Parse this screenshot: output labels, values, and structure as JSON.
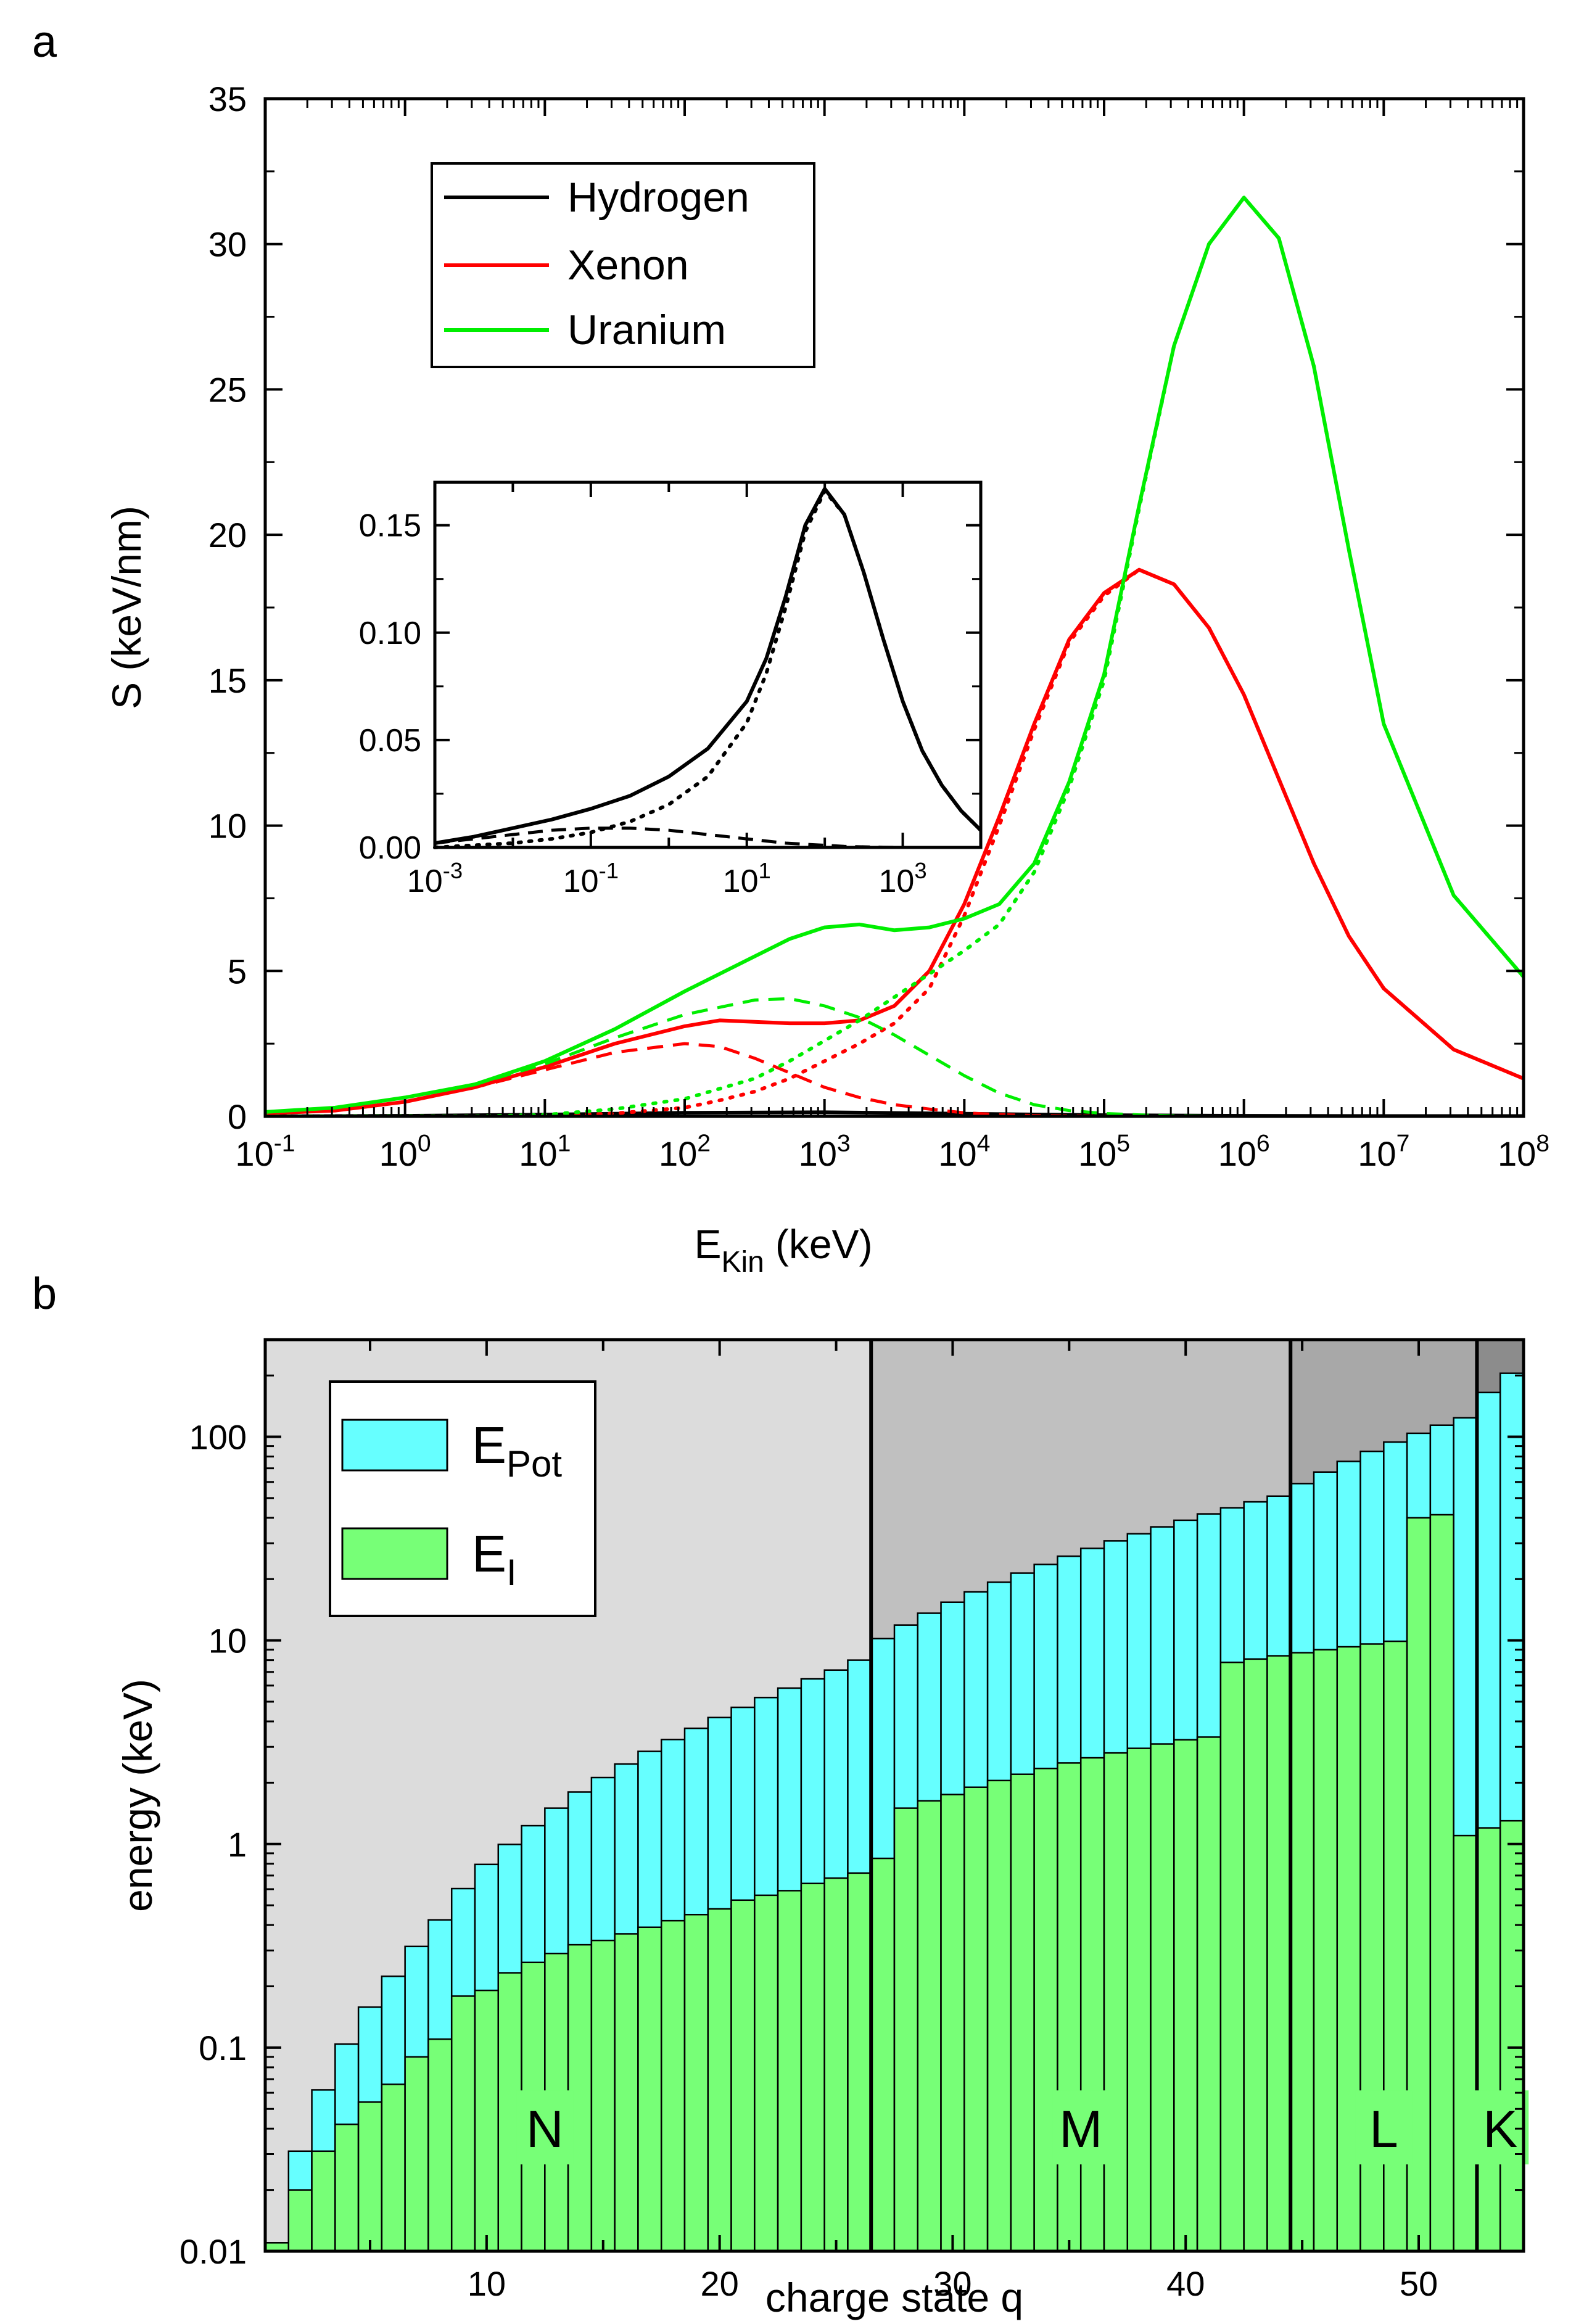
{
  "chart_data": [
    {
      "panel": "a",
      "type": "line",
      "title": "",
      "xlabel_main": "E",
      "xlabel_sub": "Kin",
      "xlabel_unit": "(keV)",
      "ylabel": "S (keV/nm)",
      "xscale": "log",
      "xlim": [
        0.1,
        100000000
      ],
      "ylim": [
        0,
        35
      ],
      "grid": false,
      "legend_position": "top-left",
      "x_ticks": [
        {
          "mant": "10",
          "exp": "-1"
        },
        {
          "mant": "10",
          "exp": "0"
        },
        {
          "mant": "10",
          "exp": "1"
        },
        {
          "mant": "10",
          "exp": "2"
        },
        {
          "mant": "10",
          "exp": "3"
        },
        {
          "mant": "10",
          "exp": "4"
        },
        {
          "mant": "10",
          "exp": "5"
        },
        {
          "mant": "10",
          "exp": "6"
        },
        {
          "mant": "10",
          "exp": "7"
        },
        {
          "mant": "10",
          "exp": "8"
        }
      ],
      "y_ticks": [
        "0",
        "5",
        "10",
        "15",
        "20",
        "25",
        "30",
        "35"
      ],
      "series": [
        {
          "name": "Hydrogen",
          "color": "#000000",
          "x_log10": [
            -1,
            0,
            1,
            2,
            3,
            4,
            5,
            6,
            7,
            8
          ],
          "total": [
            0.0,
            0.02,
            0.06,
            0.12,
            0.14,
            0.09,
            0.04,
            0.02,
            0.01,
            0.01
          ]
        },
        {
          "name": "Xenon",
          "color": "#ff0000",
          "x_log10": [
            -1,
            -0.5,
            0,
            0.5,
            1,
            1.5,
            2,
            2.25,
            2.5,
            2.75,
            3,
            3.25,
            3.5,
            3.75,
            4,
            4.25,
            4.5,
            4.75,
            5,
            5.25,
            5.5,
            5.75,
            6,
            6.25,
            6.5,
            6.75,
            7,
            7.5,
            8
          ],
          "total": [
            0.1,
            0.2,
            0.5,
            1.0,
            1.7,
            2.5,
            3.1,
            3.3,
            3.25,
            3.2,
            3.2,
            3.3,
            3.8,
            5.0,
            7.3,
            10.3,
            13.5,
            16.4,
            18.0,
            18.8,
            18.3,
            16.8,
            14.5,
            11.6,
            8.7,
            6.2,
            4.4,
            2.3,
            1.3
          ],
          "nuclear": [
            0.1,
            0.2,
            0.5,
            1.0,
            1.6,
            2.2,
            2.5,
            2.4,
            2.0,
            1.5,
            1.0,
            0.65,
            0.4,
            0.25,
            0.12,
            0.06,
            0.03,
            0.015,
            0.01,
            0.0,
            0.0,
            0.0,
            0.0,
            0.0,
            0.0,
            0.0,
            0.0,
            0.0,
            0.0
          ],
          "electronic": [
            0.0,
            0.0,
            0.0,
            0.0,
            0.02,
            0.1,
            0.3,
            0.55,
            0.85,
            1.3,
            1.9,
            2.5,
            3.2,
            4.4,
            6.9,
            10.0,
            13.3,
            16.3,
            17.9,
            18.8,
            18.3,
            16.8,
            14.5,
            11.6,
            8.7,
            6.2,
            4.4,
            2.3,
            1.3
          ]
        },
        {
          "name": "Uranium",
          "color": "#00ee00",
          "x_log10": [
            -1,
            -0.5,
            0,
            0.5,
            1,
            1.5,
            2,
            2.5,
            2.75,
            3,
            3.25,
            3.5,
            3.75,
            4,
            4.25,
            4.5,
            4.75,
            5,
            5.25,
            5.5,
            5.75,
            6,
            6.25,
            6.5,
            6.75,
            7,
            7.5,
            8
          ],
          "total": [
            0.15,
            0.3,
            0.65,
            1.1,
            1.9,
            3.0,
            4.3,
            5.5,
            6.1,
            6.5,
            6.6,
            6.4,
            6.5,
            6.8,
            7.3,
            8.7,
            11.5,
            15.2,
            21.0,
            26.5,
            30.0,
            31.6,
            30.2,
            25.8,
            19.5,
            13.5,
            7.6,
            4.8
          ],
          "nuclear": [
            0.15,
            0.3,
            0.65,
            1.1,
            1.8,
            2.7,
            3.5,
            4.0,
            4.05,
            3.8,
            3.4,
            2.8,
            2.1,
            1.4,
            0.8,
            0.4,
            0.2,
            0.1,
            0.05,
            0.02,
            0.0,
            0.0,
            0.0,
            0.0,
            0.0,
            0.0,
            0.0,
            0.0
          ],
          "electronic": [
            0.0,
            0.0,
            0.0,
            0.0,
            0.05,
            0.25,
            0.6,
            1.3,
            1.9,
            2.6,
            3.3,
            4.1,
            4.9,
            5.7,
            6.6,
            8.4,
            11.3,
            15.0,
            20.9,
            26.5,
            30.0,
            31.6,
            30.2,
            25.8,
            19.5,
            13.5,
            7.6,
            4.8
          ]
        }
      ],
      "inset": {
        "type": "line",
        "xscale": "log",
        "xlim": [
          0.001,
          10000
        ],
        "ylim": [
          0,
          0.17
        ],
        "x_ticks": [
          {
            "mant": "10",
            "exp": "-3"
          },
          {
            "mant": "10",
            "exp": "-1"
          },
          {
            "mant": "10",
            "exp": "1"
          },
          {
            "mant": "10",
            "exp": "3"
          }
        ],
        "y_ticks": [
          "0.00",
          "0.05",
          "0.10",
          "0.15"
        ],
        "series": {
          "name": "Hydrogen",
          "x_log10": [
            -3,
            -2.5,
            -2,
            -1.5,
            -1,
            -0.5,
            0,
            0.5,
            1,
            1.25,
            1.5,
            1.75,
            2,
            2.25,
            2.5,
            2.75,
            3,
            3.25,
            3.5,
            3.75,
            4
          ],
          "total": [
            0.002,
            0.005,
            0.009,
            0.013,
            0.018,
            0.024,
            0.033,
            0.046,
            0.068,
            0.088,
            0.117,
            0.15,
            0.167,
            0.155,
            0.128,
            0.097,
            0.068,
            0.045,
            0.029,
            0.017,
            0.008
          ],
          "electronic": [
            0.0,
            0.001,
            0.002,
            0.004,
            0.007,
            0.012,
            0.02,
            0.033,
            0.058,
            0.081,
            0.112,
            0.147,
            0.166,
            0.155,
            0.128,
            0.097,
            0.068,
            0.045,
            0.029,
            0.017,
            0.008
          ],
          "nuclear": [
            0.002,
            0.004,
            0.006,
            0.008,
            0.009,
            0.009,
            0.008,
            0.006,
            0.004,
            0.003,
            0.002,
            0.0015,
            0.001,
            0.0005,
            0.0003,
            0.0001,
            0.0,
            0.0,
            0.0,
            0.0,
            0.0
          ]
        }
      }
    },
    {
      "panel": "b",
      "type": "bar",
      "title": "",
      "xlabel": "charge state q",
      "ylabel": "energy (keV)",
      "yscale": "log",
      "xlim": [
        0.5,
        54.5
      ],
      "ylim": [
        0.01,
        300
      ],
      "grid": false,
      "legend_position": "top-left",
      "x_ticks": [
        "10",
        "20",
        "30",
        "40",
        "50"
      ],
      "y_ticks": [
        "0.01",
        "0.1",
        "1",
        "10",
        "100"
      ],
      "series_meta": [
        {
          "name": "E_Pot",
          "main": "E",
          "sub": "Pot",
          "color": "#66ffff"
        },
        {
          "name": "E_I",
          "main": "E",
          "sub": "I",
          "color": "#77ff77"
        }
      ],
      "shells": [
        {
          "label": "N",
          "q_start": 0.5,
          "q_end": 26.5,
          "color": "#dcdcdc",
          "label_q": 12.5
        },
        {
          "label": "M",
          "q_start": 26.5,
          "q_end": 44.5,
          "color": "#c0c0c0",
          "label_q": 35.5
        },
        {
          "label": "L",
          "q_start": 44.5,
          "q_end": 52.5,
          "color": "#a8a8a8",
          "label_q": 48.5
        },
        {
          "label": "K",
          "q_start": 52.5,
          "q_end": 54.5,
          "color": "#8c8c8c",
          "label_q": 53.5
        }
      ],
      "q": [
        1,
        2,
        3,
        4,
        5,
        6,
        7,
        8,
        9,
        10,
        11,
        12,
        13,
        14,
        15,
        16,
        17,
        18,
        19,
        20,
        21,
        22,
        23,
        24,
        25,
        26,
        27,
        28,
        29,
        30,
        31,
        32,
        33,
        34,
        35,
        36,
        37,
        38,
        39,
        40,
        41,
        42,
        43,
        44,
        45,
        46,
        47,
        48,
        49,
        50,
        51,
        52,
        53,
        54
      ],
      "E_Pot": [
        0.011,
        0.031,
        0.062,
        0.104,
        0.158,
        0.224,
        0.314,
        0.424,
        0.604,
        0.794,
        0.995,
        1.23,
        1.5,
        1.8,
        2.12,
        2.47,
        2.85,
        3.26,
        3.7,
        4.18,
        4.69,
        5.24,
        5.83,
        6.47,
        7.15,
        8.0,
        10.2,
        11.9,
        13.6,
        15.4,
        17.3,
        19.3,
        21.4,
        23.6,
        25.9,
        28.3,
        30.8,
        33.4,
        36.1,
        38.9,
        41.8,
        44.8,
        47.9,
        51.1,
        58.9,
        67.1,
        75.7,
        84.8,
        94.2,
        104,
        114,
        124,
        165,
        205
      ],
      "E_I": [
        0.011,
        0.02,
        0.031,
        0.042,
        0.054,
        0.066,
        0.09,
        0.11,
        0.179,
        0.191,
        0.233,
        0.262,
        0.29,
        0.32,
        0.336,
        0.362,
        0.39,
        0.42,
        0.45,
        0.48,
        0.53,
        0.56,
        0.59,
        0.64,
        0.68,
        0.72,
        0.85,
        1.5,
        1.63,
        1.75,
        1.9,
        2.05,
        2.2,
        2.35,
        2.5,
        2.65,
        2.8,
        2.95,
        3.1,
        3.25,
        3.35,
        7.8,
        8.1,
        8.4,
        8.7,
        9.0,
        9.3,
        9.6,
        9.9,
        40.0,
        41.4,
        1.1,
        1.2,
        1.3
      ]
    }
  ],
  "labels": {
    "panel_a": "a",
    "panel_b": "b"
  }
}
